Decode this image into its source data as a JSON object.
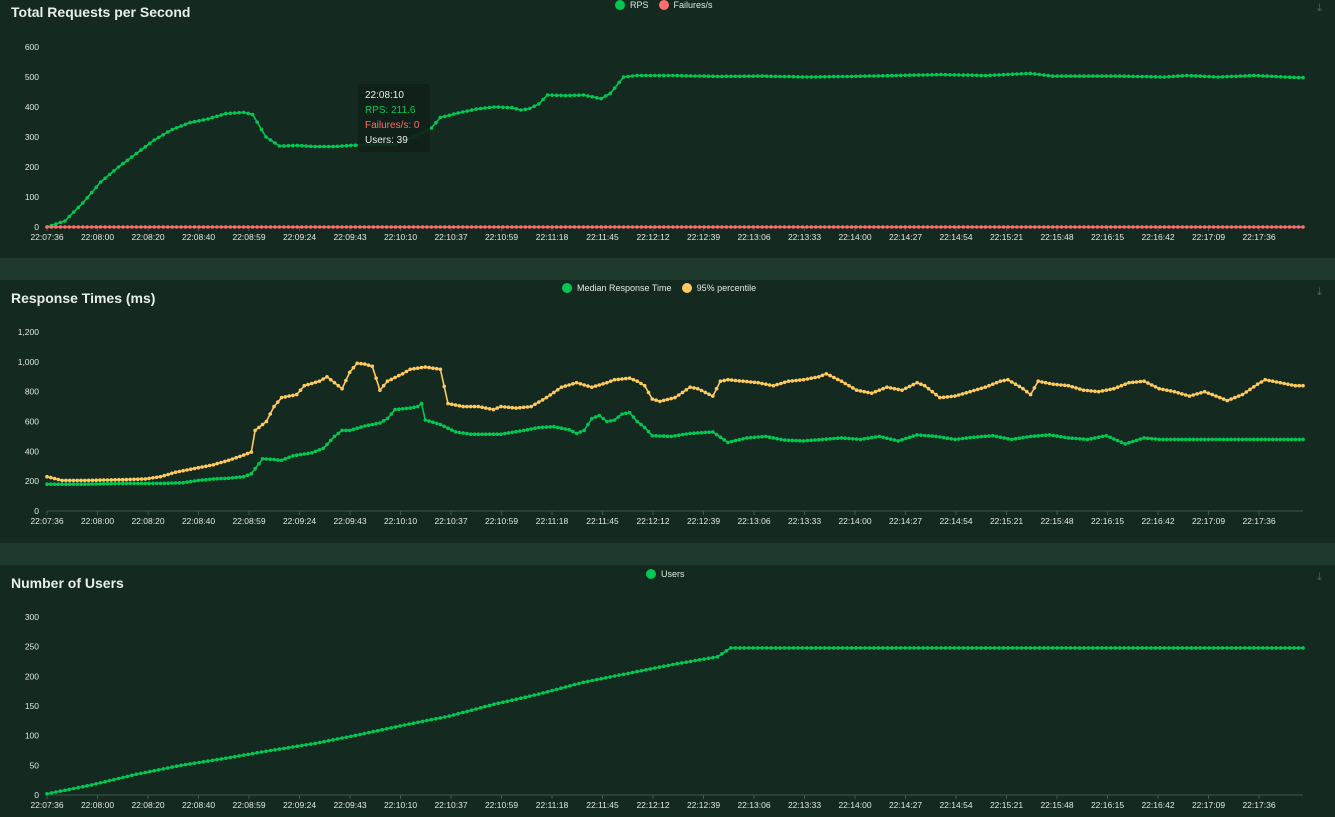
{
  "time_labels": [
    "22:07:36",
    "22:08:00",
    "22:08:20",
    "22:08:40",
    "22:08:59",
    "22:09:24",
    "22:09:43",
    "22:10:10",
    "22:10:37",
    "22:10:59",
    "22:11:18",
    "22:11:45",
    "22:12:12",
    "22:12:39",
    "22:13:06",
    "22:13:33",
    "22:14:00",
    "22:14:27",
    "22:14:54",
    "22:15:21",
    "22:15:48",
    "22:16:15",
    "22:16:42",
    "22:17:09",
    "22:17:36"
  ],
  "colors": {
    "green": "#00c853",
    "red": "#ff6d6d",
    "yellow": "#ffca5f",
    "grid": "#3d5a4a"
  },
  "tooltip": {
    "time": "22:08:10",
    "rps": "RPS: 211.6",
    "failures": "Failures/s: 0",
    "users": "Users: 39"
  },
  "chart_data": [
    {
      "type": "line",
      "title": "Total Requests per Second",
      "ylim": [
        0,
        600
      ],
      "yticks": [
        "0",
        "100",
        "200",
        "300",
        "400",
        "500",
        "600"
      ],
      "legend": [
        "RPS",
        "Failures/s"
      ],
      "series": [
        {
          "name": "RPS",
          "color": "green",
          "points": [
            [
              0,
              0
            ],
            [
              4,
              20
            ],
            [
              8,
              80
            ],
            [
              12,
              150
            ],
            [
              16,
              200
            ],
            [
              20,
              245
            ],
            [
              24,
              290
            ],
            [
              28,
              325
            ],
            [
              32,
              348
            ],
            [
              36,
              360
            ],
            [
              40,
              378
            ],
            [
              44,
              382
            ],
            [
              46,
              375
            ],
            [
              49,
              300
            ],
            [
              52,
              270
            ],
            [
              56,
              272
            ],
            [
              60,
              268
            ],
            [
              64,
              268
            ],
            [
              68,
              272
            ],
            [
              72,
              275
            ],
            [
              76,
              275
            ],
            [
              78,
              275
            ],
            [
              82,
              300
            ],
            [
              86,
              330
            ],
            [
              88,
              365
            ],
            [
              92,
              380
            ],
            [
              96,
              393
            ],
            [
              100,
              400
            ],
            [
              104,
              398
            ],
            [
              106,
              390
            ],
            [
              108,
              395
            ],
            [
              110,
              410
            ],
            [
              112,
              440
            ],
            [
              116,
              438
            ],
            [
              120,
              440
            ],
            [
              124,
              428
            ],
            [
              126,
              445
            ],
            [
              129,
              500
            ],
            [
              132,
              505
            ],
            [
              140,
              505
            ],
            [
              150,
              502
            ],
            [
              160,
              503
            ],
            [
              170,
              500
            ],
            [
              180,
              502
            ],
            [
              190,
              505
            ],
            [
              200,
              508
            ],
            [
              210,
              505
            ],
            [
              220,
              512
            ],
            [
              225,
              503
            ],
            [
              240,
              503
            ],
            [
              250,
              500
            ],
            [
              255,
              505
            ],
            [
              262,
              500
            ],
            [
              270,
              505
            ],
            [
              280,
              498
            ]
          ]
        },
        {
          "name": "Failures/s",
          "color": "red",
          "points": [
            [
              0,
              0
            ],
            [
              280,
              0
            ]
          ]
        }
      ]
    },
    {
      "type": "line",
      "title": "Response Times (ms)",
      "ylim": [
        0,
        1200
      ],
      "yticks": [
        "0",
        "200",
        "400",
        "600",
        "800",
        "1,000",
        "1,200"
      ],
      "legend": [
        "Median Response Time",
        "95% percentile"
      ],
      "series": [
        {
          "name": "Median Response Time",
          "color": "green",
          "points": [
            [
              0,
              180
            ],
            [
              10,
              180
            ],
            [
              20,
              185
            ],
            [
              30,
              185
            ],
            [
              36,
              190
            ],
            [
              40,
              205
            ],
            [
              44,
              215
            ],
            [
              48,
              220
            ],
            [
              52,
              230
            ],
            [
              54,
              250
            ],
            [
              57,
              350
            ],
            [
              60,
              345
            ],
            [
              62,
              340
            ],
            [
              65,
              370
            ],
            [
              70,
              390
            ],
            [
              73,
              420
            ],
            [
              76,
              500
            ],
            [
              78,
              540
            ],
            [
              80,
              540
            ],
            [
              84,
              570
            ],
            [
              88,
              590
            ],
            [
              90,
              620
            ],
            [
              92,
              680
            ],
            [
              96,
              690
            ],
            [
              98,
              700
            ],
            [
              99,
              720
            ],
            [
              100,
              610
            ],
            [
              104,
              580
            ],
            [
              108,
              530
            ],
            [
              112,
              515
            ],
            [
              120,
              515
            ],
            [
              126,
              540
            ],
            [
              130,
              560
            ],
            [
              134,
              565
            ],
            [
              138,
              545
            ],
            [
              140,
              520
            ],
            [
              142,
              540
            ],
            [
              144,
              620
            ],
            [
              146,
              640
            ],
            [
              148,
              600
            ],
            [
              150,
              610
            ],
            [
              152,
              650
            ],
            [
              154,
              660
            ],
            [
              156,
              600
            ],
            [
              158,
              560
            ],
            [
              160,
              505
            ],
            [
              165,
              500
            ],
            [
              170,
              520
            ],
            [
              176,
              530
            ],
            [
              180,
              460
            ],
            [
              185,
              490
            ],
            [
              190,
              500
            ],
            [
              195,
              475
            ],
            [
              200,
              470
            ],
            [
              205,
              480
            ],
            [
              210,
              490
            ],
            [
              215,
              480
            ],
            [
              220,
              500
            ],
            [
              225,
              470
            ],
            [
              230,
              510
            ],
            [
              235,
              500
            ],
            [
              240,
              480
            ],
            [
              245,
              495
            ],
            [
              250,
              505
            ],
            [
              255,
              480
            ],
            [
              260,
              500
            ],
            [
              265,
              510
            ],
            [
              270,
              490
            ],
            [
              275,
              480
            ],
            [
              280,
              505
            ],
            [
              285,
              450
            ],
            [
              290,
              490
            ],
            [
              294,
              480
            ]
          ]
        },
        {
          "name": "95% percentile",
          "color": "yellow",
          "points": [
            [
              0,
              230
            ],
            [
              4,
              205
            ],
            [
              10,
              205
            ],
            [
              20,
              210
            ],
            [
              26,
              215
            ],
            [
              30,
              230
            ],
            [
              34,
              260
            ],
            [
              40,
              290
            ],
            [
              44,
              310
            ],
            [
              48,
              340
            ],
            [
              52,
              375
            ],
            [
              54,
              395
            ],
            [
              55,
              540
            ],
            [
              58,
              600
            ],
            [
              60,
              700
            ],
            [
              62,
              760
            ],
            [
              66,
              780
            ],
            [
              68,
              840
            ],
            [
              72,
              870
            ],
            [
              74,
              900
            ],
            [
              76,
              860
            ],
            [
              78,
              820
            ],
            [
              80,
              930
            ],
            [
              82,
              990
            ],
            [
              84,
              985
            ],
            [
              86,
              970
            ],
            [
              88,
              810
            ],
            [
              90,
              870
            ],
            [
              94,
              920
            ],
            [
              96,
              950
            ],
            [
              100,
              965
            ],
            [
              104,
              950
            ],
            [
              106,
              720
            ],
            [
              110,
              700
            ],
            [
              114,
              700
            ],
            [
              118,
              680
            ],
            [
              120,
              700
            ],
            [
              124,
              690
            ],
            [
              128,
              700
            ],
            [
              132,
              760
            ],
            [
              136,
              830
            ],
            [
              140,
              860
            ],
            [
              144,
              830
            ],
            [
              148,
              860
            ],
            [
              150,
              880
            ],
            [
              154,
              890
            ],
            [
              156,
              870
            ],
            [
              158,
              840
            ],
            [
              160,
              750
            ],
            [
              162,
              735
            ],
            [
              166,
              760
            ],
            [
              170,
              830
            ],
            [
              172,
              820
            ],
            [
              176,
              770
            ],
            [
              178,
              870
            ],
            [
              180,
              880
            ],
            [
              184,
              870
            ],
            [
              188,
              860
            ],
            [
              192,
              840
            ],
            [
              196,
              870
            ],
            [
              200,
              880
            ],
            [
              204,
              900
            ],
            [
              206,
              920
            ],
            [
              210,
              870
            ],
            [
              214,
              810
            ],
            [
              218,
              790
            ],
            [
              222,
              830
            ],
            [
              226,
              810
            ],
            [
              230,
              860
            ],
            [
              232,
              840
            ],
            [
              236,
              760
            ],
            [
              240,
              770
            ],
            [
              244,
              800
            ],
            [
              248,
              830
            ],
            [
              252,
              870
            ],
            [
              254,
              880
            ],
            [
              258,
              820
            ],
            [
              260,
              780
            ],
            [
              262,
              870
            ],
            [
              266,
              850
            ],
            [
              270,
              840
            ],
            [
              274,
              810
            ],
            [
              278,
              800
            ],
            [
              282,
              820
            ],
            [
              286,
              860
            ],
            [
              290,
              870
            ],
            [
              294,
              820
            ],
            [
              298,
              800
            ],
            [
              302,
              770
            ],
            [
              306,
              800
            ],
            [
              310,
              760
            ],
            [
              312,
              740
            ],
            [
              316,
              780
            ],
            [
              320,
              850
            ],
            [
              322,
              880
            ],
            [
              326,
              860
            ],
            [
              330,
              840
            ]
          ]
        }
      ]
    },
    {
      "type": "line",
      "title": "Number of Users",
      "ylim": [
        0,
        300
      ],
      "yticks": [
        "0",
        "50",
        "100",
        "150",
        "200",
        "250",
        "300"
      ],
      "legend": [
        "Users"
      ],
      "series": [
        {
          "name": "Users",
          "color": "green",
          "points": [
            [
              0,
              2
            ],
            [
              10,
              17
            ],
            [
              20,
              35
            ],
            [
              30,
              50
            ],
            [
              40,
              62
            ],
            [
              50,
              75
            ],
            [
              60,
              87
            ],
            [
              70,
              102
            ],
            [
              80,
              118
            ],
            [
              90,
              133
            ],
            [
              100,
              153
            ],
            [
              110,
              170
            ],
            [
              120,
              190
            ],
            [
              130,
              205
            ],
            [
              140,
              220
            ],
            [
              150,
              233
            ],
            [
              153,
              248
            ],
            [
              280,
              248
            ]
          ]
        }
      ]
    }
  ]
}
